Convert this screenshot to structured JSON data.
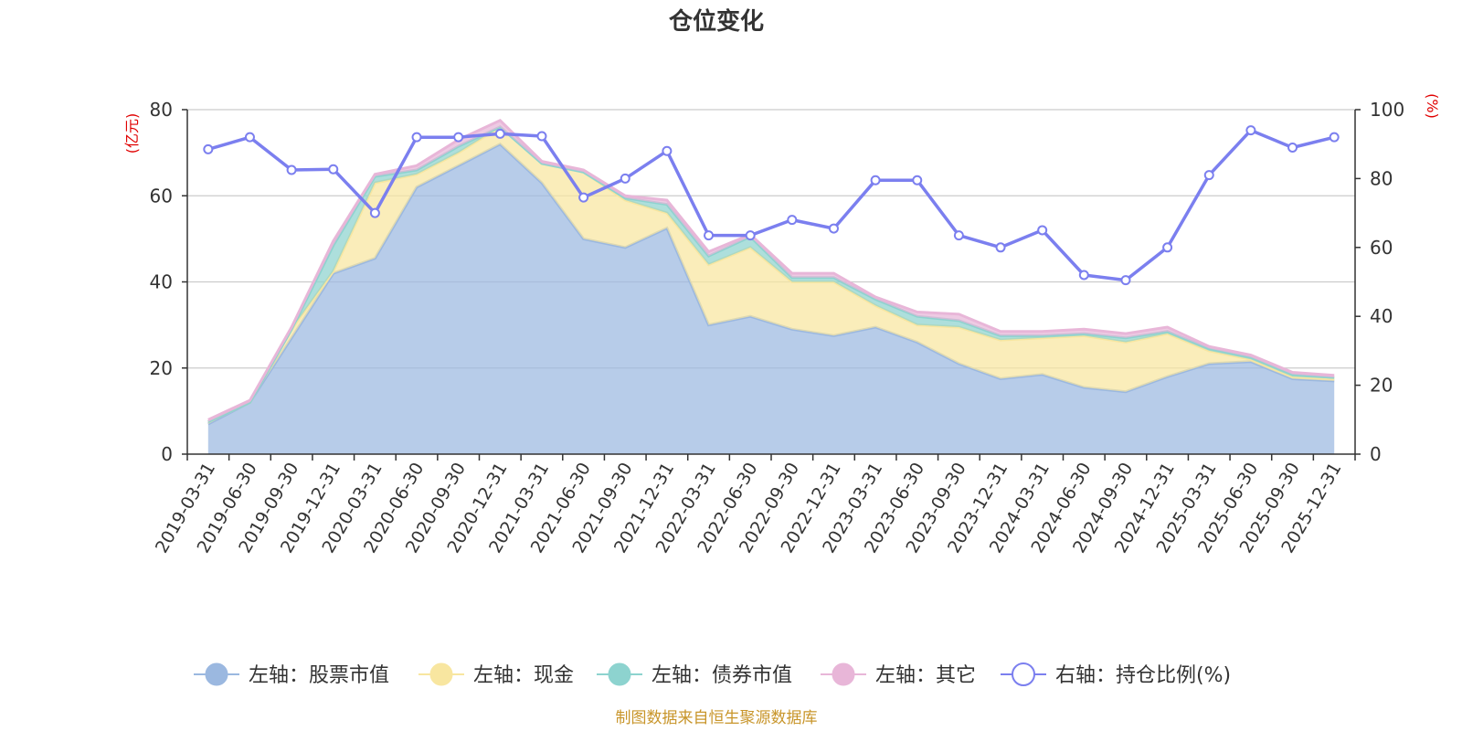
{
  "chart_data": {
    "type": "area",
    "title": "仓位变化",
    "left_axis_unit": "(亿元)",
    "right_axis_unit": "(%)",
    "ylim_left": [
      0,
      80
    ],
    "yticks_left": [
      0,
      20,
      40,
      60,
      80
    ],
    "ylim_right": [
      0,
      100
    ],
    "yticks_right": [
      0,
      20,
      40,
      60,
      80,
      100
    ],
    "categories": [
      "2019-03-31",
      "2019-06-30",
      "2019-09-30",
      "2019-12-31",
      "2020-03-31",
      "2020-06-30",
      "2020-09-30",
      "2020-12-31",
      "2021-03-31",
      "2021-06-30",
      "2021-09-30",
      "2021-12-31",
      "2022-03-31",
      "2022-06-30",
      "2022-09-30",
      "2022-12-31",
      "2023-03-31",
      "2023-06-30",
      "2023-09-30",
      "2023-12-31",
      "2024-03-31",
      "2024-06-30",
      "2024-09-30",
      "2024-12-31",
      "2025-03-31",
      "2025-06-30",
      "2025-09-30",
      "2025-12-31"
    ],
    "stacked_series": [
      {
        "name": "左轴：股票市值",
        "axis": "left",
        "color": "#9bb8e0",
        "values": [
          7,
          12,
          27,
          42,
          45.5,
          62,
          67,
          72,
          63,
          50,
          48,
          52.5,
          30,
          32,
          29,
          27.5,
          29.5,
          26,
          21,
          17.5,
          18.5,
          15.5,
          14.5,
          18,
          21,
          21.5,
          17.5,
          17
        ]
      },
      {
        "name": "左轴：现金",
        "axis": "left",
        "color": "#f8e6a0",
        "values": [
          0.5,
          0,
          2,
          0.5,
          17.5,
          3,
          3,
          4,
          4.5,
          15.5,
          11,
          3.5,
          14,
          16,
          11,
          12.5,
          5,
          4,
          8.5,
          9,
          8.5,
          12,
          11.5,
          10,
          3,
          0.5,
          0.5,
          0.5
        ]
      },
      {
        "name": "左轴：债券市值",
        "axis": "left",
        "color": "#8dd3cf",
        "values": [
          0,
          0,
          0,
          6,
          1.5,
          1,
          1.5,
          0,
          0,
          0,
          0.5,
          2,
          2,
          2.5,
          1,
          1,
          1.5,
          2,
          1.5,
          1,
          0.5,
          0.5,
          1,
          0.5,
          0.5,
          0.5,
          0.5,
          0.3
        ]
      },
      {
        "name": "左轴：其它",
        "axis": "left",
        "color": "#e8b6d8",
        "values": [
          0.5,
          0.5,
          0.5,
          1,
          0.5,
          1,
          1.5,
          1.5,
          0.5,
          0.5,
          0.5,
          1,
          1,
          0.5,
          1,
          1,
          0.5,
          1,
          1.5,
          1,
          1,
          1,
          1,
          1,
          0.5,
          0.5,
          0.5,
          0.5
        ]
      }
    ],
    "line_series": {
      "name": "右轴：持仓比例(%)",
      "axis": "right",
      "color": "#7b7fef",
      "values": [
        88.5,
        92,
        82.5,
        82.7,
        70,
        92,
        92,
        93,
        92.3,
        74.5,
        80,
        88,
        63.5,
        63.5,
        68,
        65.5,
        79.5,
        79.5,
        63.5,
        60,
        65,
        52,
        50.5,
        60,
        81,
        94,
        89,
        92
      ]
    },
    "source_note": "制图数据来自恒生聚源数据库"
  }
}
